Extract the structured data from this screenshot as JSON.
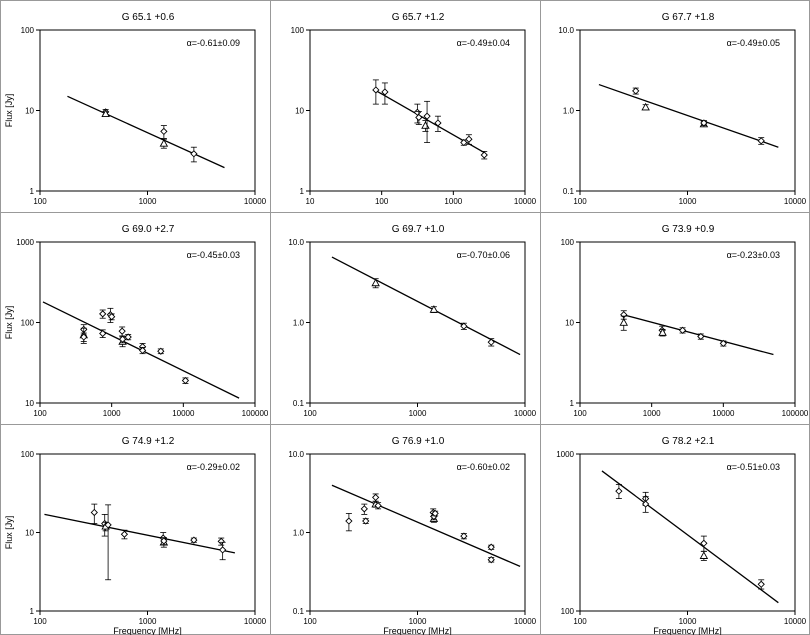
{
  "chart_data": [
    {
      "type": "scatter",
      "title": "G 65.1 +0.6",
      "annotation": "α=-0.61±0.09",
      "xscale": "log",
      "yscale": "log",
      "xlim": [
        100,
        10000
      ],
      "ylim": [
        1,
        100
      ],
      "xticks": [
        "100",
        "1000",
        "10000"
      ],
      "yticks": [
        "1",
        "10",
        "100"
      ],
      "ylabel": "Flux [Jy]",
      "xlabel": "",
      "fit": [
        [
          180,
          15
        ],
        [
          5200,
          1.95
        ]
      ],
      "points": [
        {
          "x": 408,
          "y": 9.6,
          "marker": "diamond",
          "err": 0.7
        },
        {
          "x": 408,
          "y": 9.1,
          "marker": "triangle",
          "err": 0.5
        },
        {
          "x": 1420,
          "y": 5.5,
          "marker": "diamond",
          "err": 1.0
        },
        {
          "x": 1420,
          "y": 3.9,
          "marker": "triangle",
          "err": 0.5
        },
        {
          "x": 2700,
          "y": 2.9,
          "marker": "diamond",
          "err": 0.6
        }
      ]
    },
    {
      "type": "scatter",
      "title": "G 65.7 +1.2",
      "annotation": "α=-0.49±0.04",
      "xscale": "log",
      "yscale": "log",
      "xlim": [
        10,
        10000
      ],
      "ylim": [
        1,
        100
      ],
      "xticks": [
        "10",
        "100",
        "1000",
        "10000"
      ],
      "yticks": [
        "1",
        "10",
        "100"
      ],
      "ylabel": "",
      "xlabel": "",
      "fit": [
        [
          80,
          18
        ],
        [
          2700,
          3.0
        ]
      ],
      "points": [
        {
          "x": 83,
          "y": 18,
          "marker": "diamond",
          "err": 6
        },
        {
          "x": 111,
          "y": 17,
          "marker": "diamond",
          "err": 5
        },
        {
          "x": 315,
          "y": 9.5,
          "marker": "diamond",
          "err": 2.5
        },
        {
          "x": 330,
          "y": 8.2,
          "marker": "diamond",
          "err": 1.5
        },
        {
          "x": 408,
          "y": 6.5,
          "marker": "triangle",
          "err": 1.0
        },
        {
          "x": 430,
          "y": 8.5,
          "marker": "diamond",
          "err": 4.5
        },
        {
          "x": 610,
          "y": 7.0,
          "marker": "diamond",
          "err": 1.5
        },
        {
          "x": 1400,
          "y": 4.0,
          "marker": "diamond",
          "err": 0.3
        },
        {
          "x": 1650,
          "y": 4.4,
          "marker": "diamond",
          "err": 0.6
        },
        {
          "x": 2700,
          "y": 2.8,
          "marker": "diamond",
          "err": 0.3
        }
      ]
    },
    {
      "type": "scatter",
      "title": "G 67.7 +1.8",
      "annotation": "α=-0.49±0.05",
      "xscale": "log",
      "yscale": "log",
      "xlim": [
        100,
        10000
      ],
      "ylim": [
        0.1,
        10
      ],
      "xticks": [
        "100",
        "1000",
        "10000"
      ],
      "yticks": [
        "0.1",
        "1.0",
        "10.0"
      ],
      "ylabel": "",
      "xlabel": "",
      "fit": [
        [
          150,
          2.1
        ],
        [
          7000,
          0.35
        ]
      ],
      "points": [
        {
          "x": 330,
          "y": 1.75,
          "marker": "diamond",
          "err": 0.15
        },
        {
          "x": 408,
          "y": 1.1,
          "marker": "triangle",
          "err": 0.08
        },
        {
          "x": 1420,
          "y": 0.68,
          "marker": "triangle",
          "err": 0.05
        },
        {
          "x": 1420,
          "y": 0.7,
          "marker": "diamond",
          "err": 0.05
        },
        {
          "x": 4850,
          "y": 0.42,
          "marker": "diamond",
          "err": 0.04
        }
      ]
    },
    {
      "type": "scatter",
      "title": "G 69.0 +2.7",
      "annotation": "α=-0.45±0.03",
      "xscale": "log",
      "yscale": "log",
      "xlim": [
        100,
        100000
      ],
      "ylim": [
        10,
        1000
      ],
      "xticks": [
        "100",
        "1000",
        "10000",
        "100000"
      ],
      "yticks": [
        "10",
        "100",
        "1000"
      ],
      "ylabel": "Flux [Jy]",
      "xlabel": "",
      "fit": [
        [
          110,
          180
        ],
        [
          60000,
          11.5
        ]
      ],
      "points": [
        {
          "x": 408,
          "y": 82,
          "marker": "diamond",
          "err": 12
        },
        {
          "x": 408,
          "y": 70,
          "marker": "triangle",
          "err": 15
        },
        {
          "x": 408,
          "y": 66,
          "marker": "diamond",
          "err": 8
        },
        {
          "x": 750,
          "y": 128,
          "marker": "diamond",
          "err": 15
        },
        {
          "x": 750,
          "y": 73,
          "marker": "diamond",
          "err": 8
        },
        {
          "x": 960,
          "y": 125,
          "marker": "diamond",
          "err": 25
        },
        {
          "x": 1000,
          "y": 118,
          "marker": "diamond",
          "err": 10
        },
        {
          "x": 1400,
          "y": 78,
          "marker": "diamond",
          "err": 10
        },
        {
          "x": 1420,
          "y": 58,
          "marker": "triangle",
          "err": 8
        },
        {
          "x": 1420,
          "y": 62,
          "marker": "diamond",
          "err": 6
        },
        {
          "x": 1700,
          "y": 66,
          "marker": "diamond",
          "err": 5
        },
        {
          "x": 2700,
          "y": 50,
          "marker": "diamond",
          "err": 5
        },
        {
          "x": 2700,
          "y": 45,
          "marker": "diamond",
          "err": 4
        },
        {
          "x": 4850,
          "y": 44,
          "marker": "diamond",
          "err": 3
        },
        {
          "x": 10700,
          "y": 19,
          "marker": "diamond",
          "err": 1.5
        }
      ]
    },
    {
      "type": "scatter",
      "title": "G 69.7 +1.0",
      "annotation": "α=-0.70±0.06",
      "xscale": "log",
      "yscale": "log",
      "xlim": [
        100,
        10000
      ],
      "ylim": [
        0.1,
        10
      ],
      "xticks": [
        "100",
        "1000",
        "10000"
      ],
      "yticks": [
        "0.1",
        "1.0",
        "10.0"
      ],
      "ylabel": "",
      "xlabel": "",
      "fit": [
        [
          160,
          6.5
        ],
        [
          9000,
          0.4
        ]
      ],
      "points": [
        {
          "x": 408,
          "y": 3.1,
          "marker": "triangle",
          "err": 0.4
        },
        {
          "x": 1420,
          "y": 1.45,
          "marker": "triangle",
          "err": 0.12
        },
        {
          "x": 2700,
          "y": 0.9,
          "marker": "diamond",
          "err": 0.08
        },
        {
          "x": 4850,
          "y": 0.57,
          "marker": "diamond",
          "err": 0.06
        }
      ]
    },
    {
      "type": "scatter",
      "title": "G 73.9 +0.9",
      "annotation": "α=-0.23±0.03",
      "xscale": "log",
      "yscale": "log",
      "xlim": [
        100,
        100000
      ],
      "ylim": [
        1,
        100
      ],
      "xticks": [
        "100",
        "1000",
        "10000",
        "100000"
      ],
      "yticks": [
        "1",
        "10",
        "100"
      ],
      "ylabel": "",
      "xlabel": "",
      "fit": [
        [
          400,
          12.5
        ],
        [
          50000,
          4.0
        ]
      ],
      "points": [
        {
          "x": 408,
          "y": 12.5,
          "marker": "diamond",
          "err": 1.5
        },
        {
          "x": 408,
          "y": 10,
          "marker": "triangle",
          "err": 2.0
        },
        {
          "x": 1400,
          "y": 8.0,
          "marker": "diamond",
          "err": 1.0
        },
        {
          "x": 1420,
          "y": 7.5,
          "marker": "triangle",
          "err": 0.7
        },
        {
          "x": 2700,
          "y": 8.0,
          "marker": "diamond",
          "err": 0.6
        },
        {
          "x": 4850,
          "y": 6.7,
          "marker": "diamond",
          "err": 0.5
        },
        {
          "x": 10000,
          "y": 5.5,
          "marker": "diamond",
          "err": 0.4
        }
      ]
    },
    {
      "type": "scatter",
      "title": "G 74.9 +1.2",
      "annotation": "α=-0.29±0.02",
      "xscale": "log",
      "yscale": "log",
      "xlim": [
        100,
        10000
      ],
      "ylim": [
        1,
        100
      ],
      "xticks": [
        "100",
        "1000",
        "10000"
      ],
      "yticks": [
        "1",
        "10",
        "100"
      ],
      "ylabel": "Flux [Jy]",
      "xlabel": "Frequency [MHz]",
      "fit": [
        [
          110,
          17
        ],
        [
          6500,
          5.5
        ]
      ],
      "points": [
        {
          "x": 320,
          "y": 18,
          "marker": "diamond",
          "err": 5
        },
        {
          "x": 400,
          "y": 13,
          "marker": "diamond",
          "err": 4
        },
        {
          "x": 408,
          "y": 12,
          "marker": "triangle",
          "err": 1.5
        },
        {
          "x": 430,
          "y": 12.5,
          "marker": "diamond",
          "err": 10
        },
        {
          "x": 610,
          "y": 9.5,
          "marker": "diamond",
          "err": 1.2
        },
        {
          "x": 1400,
          "y": 8.5,
          "marker": "diamond",
          "err": 1.5
        },
        {
          "x": 1420,
          "y": 7.5,
          "marker": "triangle",
          "err": 1.0
        },
        {
          "x": 1420,
          "y": 7.8,
          "marker": "diamond",
          "err": 0.8
        },
        {
          "x": 2700,
          "y": 8.0,
          "marker": "diamond",
          "err": 0.5
        },
        {
          "x": 4850,
          "y": 7.7,
          "marker": "diamond",
          "err": 0.8
        },
        {
          "x": 5000,
          "y": 6.0,
          "marker": "diamond",
          "err": 1.5
        }
      ]
    },
    {
      "type": "scatter",
      "title": "G 76.9 +1.0",
      "annotation": "α=-0.60±0.02",
      "xscale": "log",
      "yscale": "log",
      "xlim": [
        100,
        10000
      ],
      "ylim": [
        0.1,
        10
      ],
      "xticks": [
        "100",
        "1000",
        "10000"
      ],
      "yticks": [
        "0.1",
        "1.0",
        "10.0"
      ],
      "ylabel": "",
      "xlabel": "Frequency [MHz]",
      "fit": [
        [
          160,
          4.0
        ],
        [
          9000,
          0.37
        ]
      ],
      "points": [
        {
          "x": 230,
          "y": 1.4,
          "marker": "diamond",
          "err": 0.35
        },
        {
          "x": 320,
          "y": 2.0,
          "marker": "diamond",
          "err": 0.3
        },
        {
          "x": 330,
          "y": 1.4,
          "marker": "diamond",
          "err": 0.1
        },
        {
          "x": 408,
          "y": 2.8,
          "marker": "diamond",
          "err": 0.3
        },
        {
          "x": 408,
          "y": 2.3,
          "marker": "triangle",
          "err": 0.2
        },
        {
          "x": 430,
          "y": 2.2,
          "marker": "diamond",
          "err": 0.2
        },
        {
          "x": 1400,
          "y": 1.8,
          "marker": "diamond",
          "err": 0.2
        },
        {
          "x": 1420,
          "y": 1.5,
          "marker": "triangle",
          "err": 0.15
        },
        {
          "x": 1420,
          "y": 1.6,
          "marker": "diamond",
          "err": 0.15
        },
        {
          "x": 1460,
          "y": 1.75,
          "marker": "diamond",
          "err": 0.12
        },
        {
          "x": 2700,
          "y": 0.9,
          "marker": "diamond",
          "err": 0.07
        },
        {
          "x": 4850,
          "y": 0.65,
          "marker": "diamond",
          "err": 0.04
        },
        {
          "x": 4850,
          "y": 0.45,
          "marker": "diamond",
          "err": 0.03
        }
      ]
    },
    {
      "type": "scatter",
      "title": "G 78.2 +2.1",
      "annotation": "α=-0.51±0.03",
      "xscale": "log",
      "yscale": "log",
      "xlim": [
        100,
        10000
      ],
      "ylim": [
        100,
        1000
      ],
      "xticks": [
        "100",
        "1000",
        "10000"
      ],
      "yticks": [
        "100",
        "1000"
      ],
      "ylabel": "",
      "xlabel": "Frequency [MHz]",
      "fit": [
        [
          160,
          780
        ],
        [
          7000,
          113
        ]
      ],
      "points": [
        {
          "x": 230,
          "y": 580,
          "marker": "diamond",
          "err": 60
        },
        {
          "x": 408,
          "y": 520,
          "marker": "diamond",
          "err": 50
        },
        {
          "x": 408,
          "y": 480,
          "marker": "diamond",
          "err": 55
        },
        {
          "x": 1420,
          "y": 270,
          "marker": "diamond",
          "err": 30
        },
        {
          "x": 1420,
          "y": 225,
          "marker": "triangle",
          "err": 15
        },
        {
          "x": 4850,
          "y": 148,
          "marker": "diamond",
          "err": 10
        }
      ]
    }
  ]
}
